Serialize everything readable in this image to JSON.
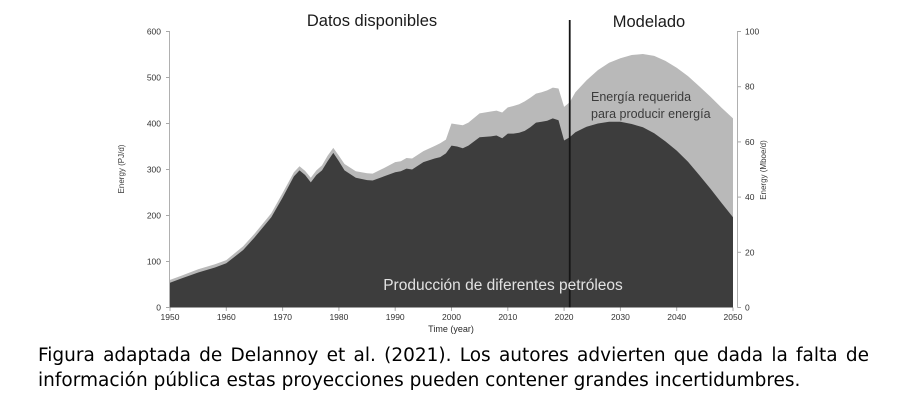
{
  "figure": {
    "caption": "Figura adaptada de Delannoy et al. (2021). Los autores advierten que dada la falta de información pública estas proyecciones pueden contener grandes incertidumbres."
  },
  "chart_data": {
    "type": "area",
    "left_panel_title": "Datos disponibles",
    "right_panel_title": "Modelado",
    "xlabel": "Time (year)",
    "ylabel_left": "Energy (PJ/d)",
    "ylabel_right": "Energy (Mboe/d)",
    "xlim": [
      1950,
      2050
    ],
    "ylim_left": [
      0,
      600
    ],
    "ylim_right": [
      0,
      100
    ],
    "x_ticks": [
      1950,
      1960,
      1970,
      1980,
      1990,
      2000,
      2010,
      2020,
      2030,
      2040,
      2050
    ],
    "y_ticks_left": [
      0,
      100,
      200,
      300,
      400,
      500,
      600
    ],
    "y_ticks_right": [
      0,
      20,
      40,
      60,
      80,
      100
    ],
    "grid": false,
    "divider_year": 2021,
    "annotations": {
      "energy_required_lines": [
        "Energía requerida",
        "para producir energía"
      ],
      "production_label": "Producción de diferentes petróleos"
    },
    "series": [
      {
        "name": "Producción de diferentes petróleos",
        "color": "#3d3d3d"
      },
      {
        "name": "Energía requerida para producir energía",
        "color": "#b9b9b9"
      }
    ],
    "colors": {
      "divider": "#151515",
      "axis": "#b0b0b0",
      "tick": "#a8a8a8",
      "tick_text": "#333333"
    },
    "data": {
      "years": [
        1950,
        1952,
        1955,
        1958,
        1960,
        1963,
        1965,
        1968,
        1970,
        1972,
        1973,
        1974,
        1975,
        1976,
        1977,
        1978,
        1979,
        1980,
        1981,
        1983,
        1985,
        1986,
        1988,
        1990,
        1991,
        1992,
        1993,
        1995,
        1997,
        1998,
        1999,
        2000,
        2001,
        2002,
        2003,
        2005,
        2007,
        2008,
        2009,
        2010,
        2011,
        2012,
        2013,
        2014,
        2015,
        2016,
        2017,
        2018,
        2019,
        2020,
        2021,
        2022,
        2024,
        2026,
        2028,
        2030,
        2032,
        2034,
        2036,
        2038,
        2040,
        2042,
        2044,
        2046,
        2048,
        2050
      ],
      "production_PJd": [
        54,
        63,
        76,
        87,
        96,
        125,
        152,
        196,
        239,
        285,
        298,
        288,
        272,
        288,
        298,
        318,
        336,
        318,
        298,
        282,
        277,
        276,
        285,
        294,
        296,
        302,
        300,
        316,
        324,
        327,
        335,
        352,
        350,
        346,
        352,
        370,
        372,
        374,
        368,
        378,
        378,
        380,
        384,
        392,
        402,
        404,
        406,
        411,
        407,
        363,
        370,
        381,
        393,
        400,
        404,
        404,
        399,
        392,
        379,
        361,
        341,
        317,
        288,
        258,
        227,
        196
      ],
      "gross_total_PJd": [
        60,
        69,
        83,
        94,
        103,
        133,
        160,
        205,
        249,
        294,
        307,
        297,
        282,
        298,
        309,
        330,
        347,
        330,
        312,
        296,
        292,
        291,
        303,
        316,
        318,
        325,
        324,
        340,
        351,
        357,
        365,
        400,
        398,
        396,
        402,
        422,
        426,
        428,
        424,
        435,
        438,
        442,
        448,
        456,
        465,
        468,
        472,
        478,
        476,
        436,
        446,
        468,
        494,
        516,
        532,
        542,
        549,
        551,
        547,
        536,
        521,
        503,
        481,
        458,
        434,
        411
      ]
    }
  }
}
